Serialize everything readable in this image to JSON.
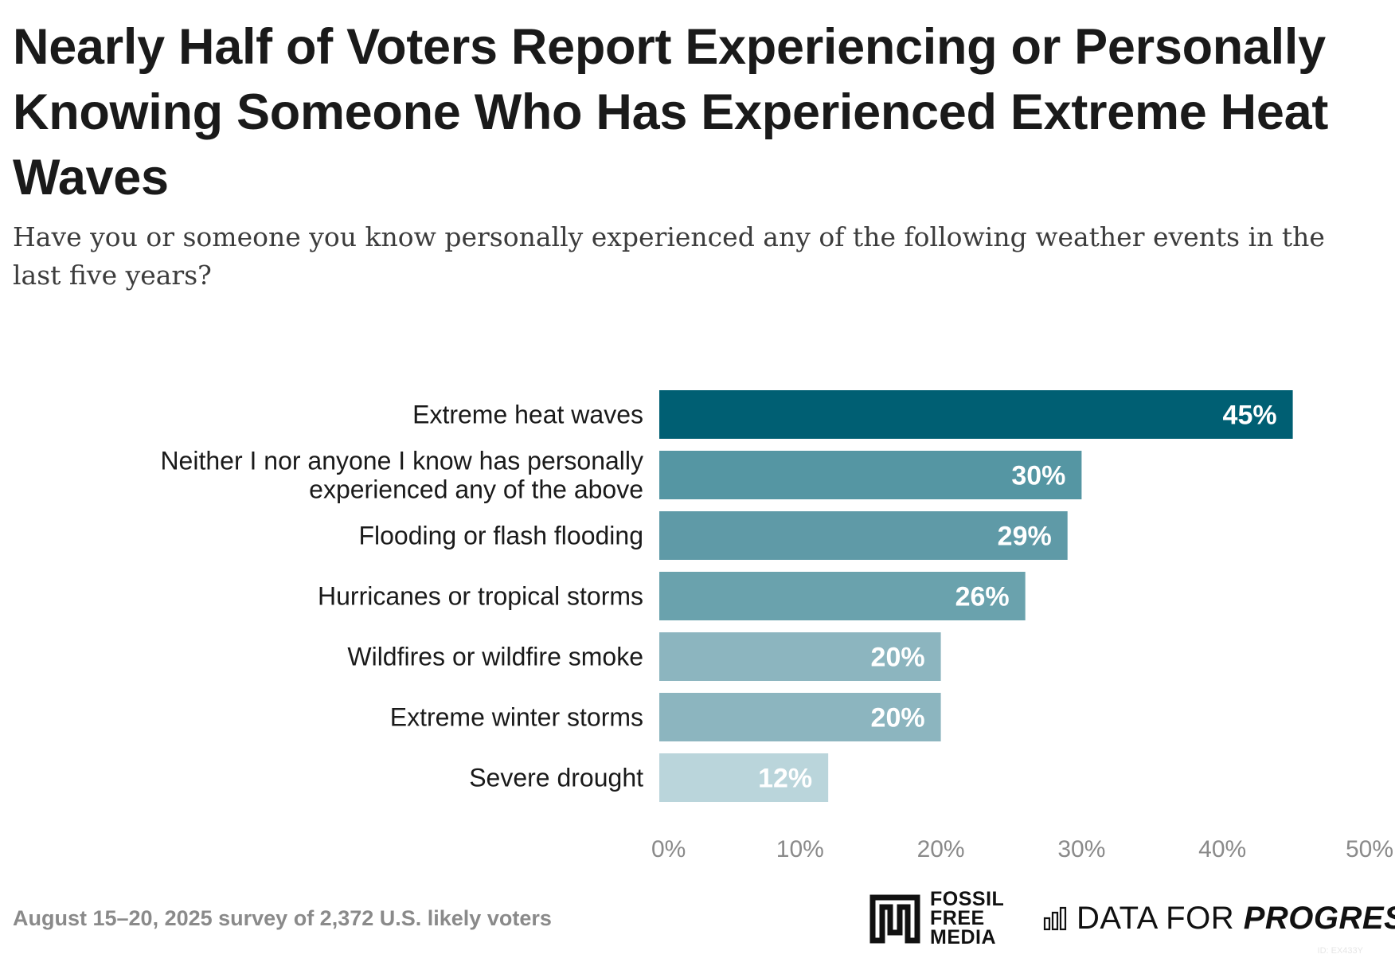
{
  "title": "Nearly Half of Voters Report Experiencing or Personally Knowing Someone Who Has Experienced Extreme Heat Waves",
  "subtitle": "Have you or someone you know personally experienced any of the following weather events in the last five years?",
  "footer": {
    "source_note": "August 15–20, 2025 survey of 2,372 U.S. likely voters",
    "logo_ffm": [
      "FOSSIL",
      "FREE",
      "MEDIA"
    ],
    "logo_dfp_plain": "DATA FOR ",
    "logo_dfp_bold": "PROGRESS",
    "id_mark": "ID: EX433Y"
  },
  "chart_data": {
    "type": "bar",
    "orientation": "horizontal",
    "title": "Nearly Half of Voters Report Experiencing or Personally Knowing Someone Who Has Experienced Extreme Heat Waves",
    "xlabel": "",
    "ylabel": "",
    "xlim": [
      0,
      50
    ],
    "ticks": [
      0,
      10,
      20,
      30,
      40,
      50
    ],
    "tick_labels": [
      "0%",
      "10%",
      "20%",
      "30%",
      "40%",
      "50%"
    ],
    "grid": false,
    "categories": [
      [
        "Extreme heat waves"
      ],
      [
        "Neither I nor anyone I know has personally",
        "experienced any of the above"
      ],
      [
        "Flooding or flash flooding"
      ],
      [
        "Hurricanes or tropical storms"
      ],
      [
        "Wildfires or wildfire smoke"
      ],
      [
        "Extreme winter storms"
      ],
      [
        "Severe drought"
      ]
    ],
    "values": [
      45,
      30,
      29,
      26,
      20,
      20,
      12
    ],
    "value_labels": [
      "45%",
      "30%",
      "29%",
      "26%",
      "20%",
      "20%",
      "12%"
    ],
    "colors": [
      "#005f73",
      "#5596a3",
      "#5f9aa7",
      "#6aa2ad",
      "#8cb5bf",
      "#8cb5bf",
      "#bad5db"
    ]
  }
}
